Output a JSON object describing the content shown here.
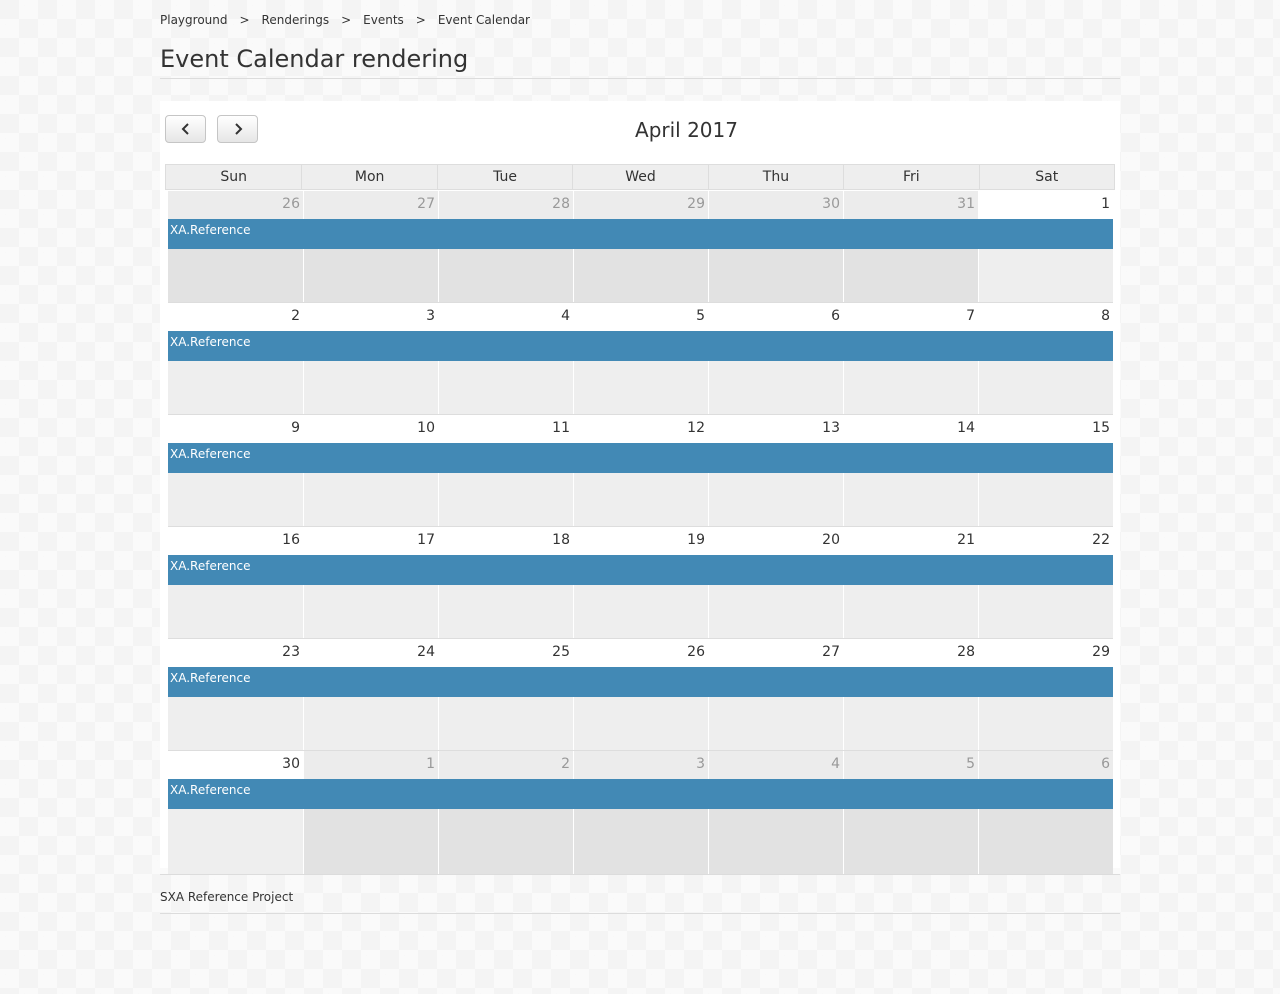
{
  "breadcrumb": {
    "items": [
      "Playground",
      "Renderings",
      "Events",
      "Event Calendar"
    ],
    "separator": ">"
  },
  "page_title": "Event Calendar rendering",
  "calendar": {
    "title": "April 2017",
    "prev_icon": "chevron-left-icon",
    "next_icon": "chevron-right-icon",
    "weekdays": [
      "Sun",
      "Mon",
      "Tue",
      "Wed",
      "Thu",
      "Fri",
      "Sat"
    ],
    "event_color": "#4289b5",
    "weeks": [
      {
        "event": "XA.Reference",
        "days": [
          {
            "num": "26",
            "other": true
          },
          {
            "num": "27",
            "other": true
          },
          {
            "num": "28",
            "other": true
          },
          {
            "num": "29",
            "other": true
          },
          {
            "num": "30",
            "other": true
          },
          {
            "num": "31",
            "other": true
          },
          {
            "num": "1",
            "other": false
          }
        ]
      },
      {
        "event": "XA.Reference",
        "days": [
          {
            "num": "2",
            "other": false
          },
          {
            "num": "3",
            "other": false
          },
          {
            "num": "4",
            "other": false
          },
          {
            "num": "5",
            "other": false
          },
          {
            "num": "6",
            "other": false
          },
          {
            "num": "7",
            "other": false
          },
          {
            "num": "8",
            "other": false
          }
        ]
      },
      {
        "event": "XA.Reference",
        "days": [
          {
            "num": "9",
            "other": false
          },
          {
            "num": "10",
            "other": false
          },
          {
            "num": "11",
            "other": false
          },
          {
            "num": "12",
            "other": false
          },
          {
            "num": "13",
            "other": false
          },
          {
            "num": "14",
            "other": false
          },
          {
            "num": "15",
            "other": false
          }
        ]
      },
      {
        "event": "XA.Reference",
        "days": [
          {
            "num": "16",
            "other": false
          },
          {
            "num": "17",
            "other": false
          },
          {
            "num": "18",
            "other": false
          },
          {
            "num": "19",
            "other": false
          },
          {
            "num": "20",
            "other": false
          },
          {
            "num": "21",
            "other": false
          },
          {
            "num": "22",
            "other": false
          }
        ]
      },
      {
        "event": "XA.Reference",
        "days": [
          {
            "num": "23",
            "other": false
          },
          {
            "num": "24",
            "other": false
          },
          {
            "num": "25",
            "other": false
          },
          {
            "num": "26",
            "other": false
          },
          {
            "num": "27",
            "other": false
          },
          {
            "num": "28",
            "other": false
          },
          {
            "num": "29",
            "other": false
          }
        ]
      },
      {
        "event": "XA.Reference",
        "days": [
          {
            "num": "30",
            "other": false
          },
          {
            "num": "1",
            "other": true
          },
          {
            "num": "2",
            "other": true
          },
          {
            "num": "3",
            "other": true
          },
          {
            "num": "4",
            "other": true
          },
          {
            "num": "5",
            "other": true
          },
          {
            "num": "6",
            "other": true
          }
        ]
      }
    ]
  },
  "footer": {
    "text": "SXA Reference Project"
  }
}
